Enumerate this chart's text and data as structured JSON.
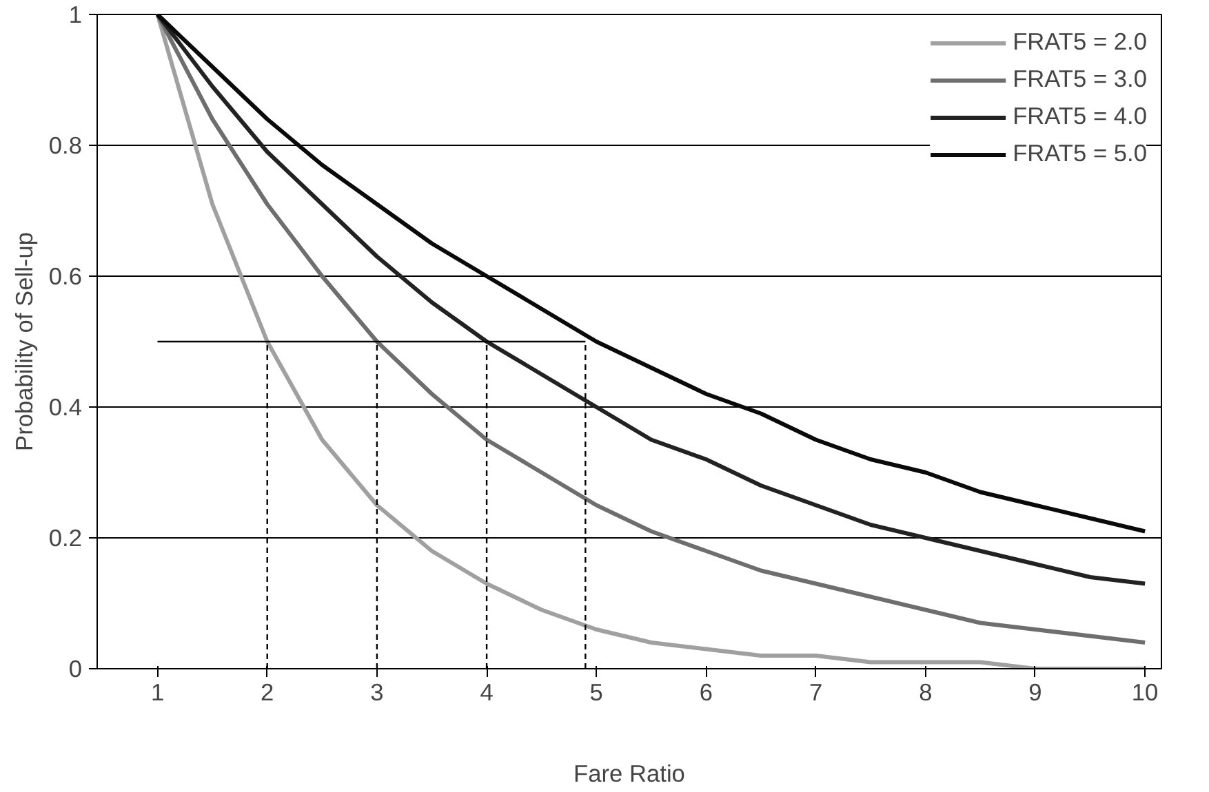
{
  "chart_data": {
    "type": "line",
    "xlabel": "Fare Ratio",
    "ylabel": "Probability of Sell-up",
    "x": [
      1,
      1.5,
      2,
      2.5,
      3,
      3.5,
      4,
      4.5,
      5,
      5.5,
      6,
      6.5,
      7,
      7.5,
      8,
      8.5,
      9,
      9.5,
      10
    ],
    "series": [
      {
        "name": "FRAT5 = 2.0",
        "color": "#a0a0a0",
        "values": [
          1,
          0.71,
          0.5,
          0.35,
          0.25,
          0.18,
          0.13,
          0.09,
          0.06,
          0.04,
          0.03,
          0.02,
          0.02,
          0.01,
          0.01,
          0.01,
          0,
          0,
          0
        ]
      },
      {
        "name": "FRAT5 = 3.0",
        "color": "#6e6e6e",
        "values": [
          1,
          0.84,
          0.71,
          0.6,
          0.5,
          0.42,
          0.35,
          0.3,
          0.25,
          0.21,
          0.18,
          0.15,
          0.13,
          0.11,
          0.09,
          0.07,
          0.06,
          0.05,
          0.04
        ]
      },
      {
        "name": "FRAT5 = 4.0",
        "color": "#222222",
        "values": [
          1,
          0.89,
          0.79,
          0.71,
          0.63,
          0.56,
          0.5,
          0.45,
          0.4,
          0.35,
          0.32,
          0.28,
          0.25,
          0.22,
          0.2,
          0.18,
          0.16,
          0.14,
          0.13
        ]
      },
      {
        "name": "FRAT5 = 5.0",
        "color": "#0a0a0a",
        "values": [
          1,
          0.92,
          0.84,
          0.77,
          0.71,
          0.65,
          0.6,
          0.55,
          0.5,
          0.46,
          0.42,
          0.39,
          0.35,
          0.32,
          0.3,
          0.27,
          0.25,
          0.23,
          0.21
        ]
      },
      {
        "color": "#000000",
        "x": [
          1,
          4.9
        ],
        "values": [
          0.5,
          0.5
        ]
      },
      {
        "color": "#000000",
        "x": [
          2,
          2
        ],
        "values": [
          0,
          0.5
        ],
        "line_style": "dashed"
      },
      {
        "color": "#000000",
        "x": [
          3,
          3
        ],
        "values": [
          0,
          0.5
        ],
        "line_style": "dashed"
      },
      {
        "color": "#000000",
        "x": [
          4,
          4
        ],
        "values": [
          0,
          0.5
        ],
        "line_style": "dashed"
      },
      {
        "color": "#000000",
        "x": [
          4.9,
          4.9
        ],
        "values": [
          0,
          0.5
        ],
        "line_style": "dashed"
      }
    ],
    "xlim": [
      0.45,
      10.15
    ],
    "xticks": [
      1,
      2,
      3,
      4,
      5,
      6,
      7,
      8,
      9,
      10
    ],
    "ylim": [
      0,
      1
    ],
    "yticks": [
      0,
      0.2,
      0.4,
      0.6,
      0.8,
      1
    ],
    "grid": "y",
    "legend": "top right",
    "line_style": "solid"
  }
}
